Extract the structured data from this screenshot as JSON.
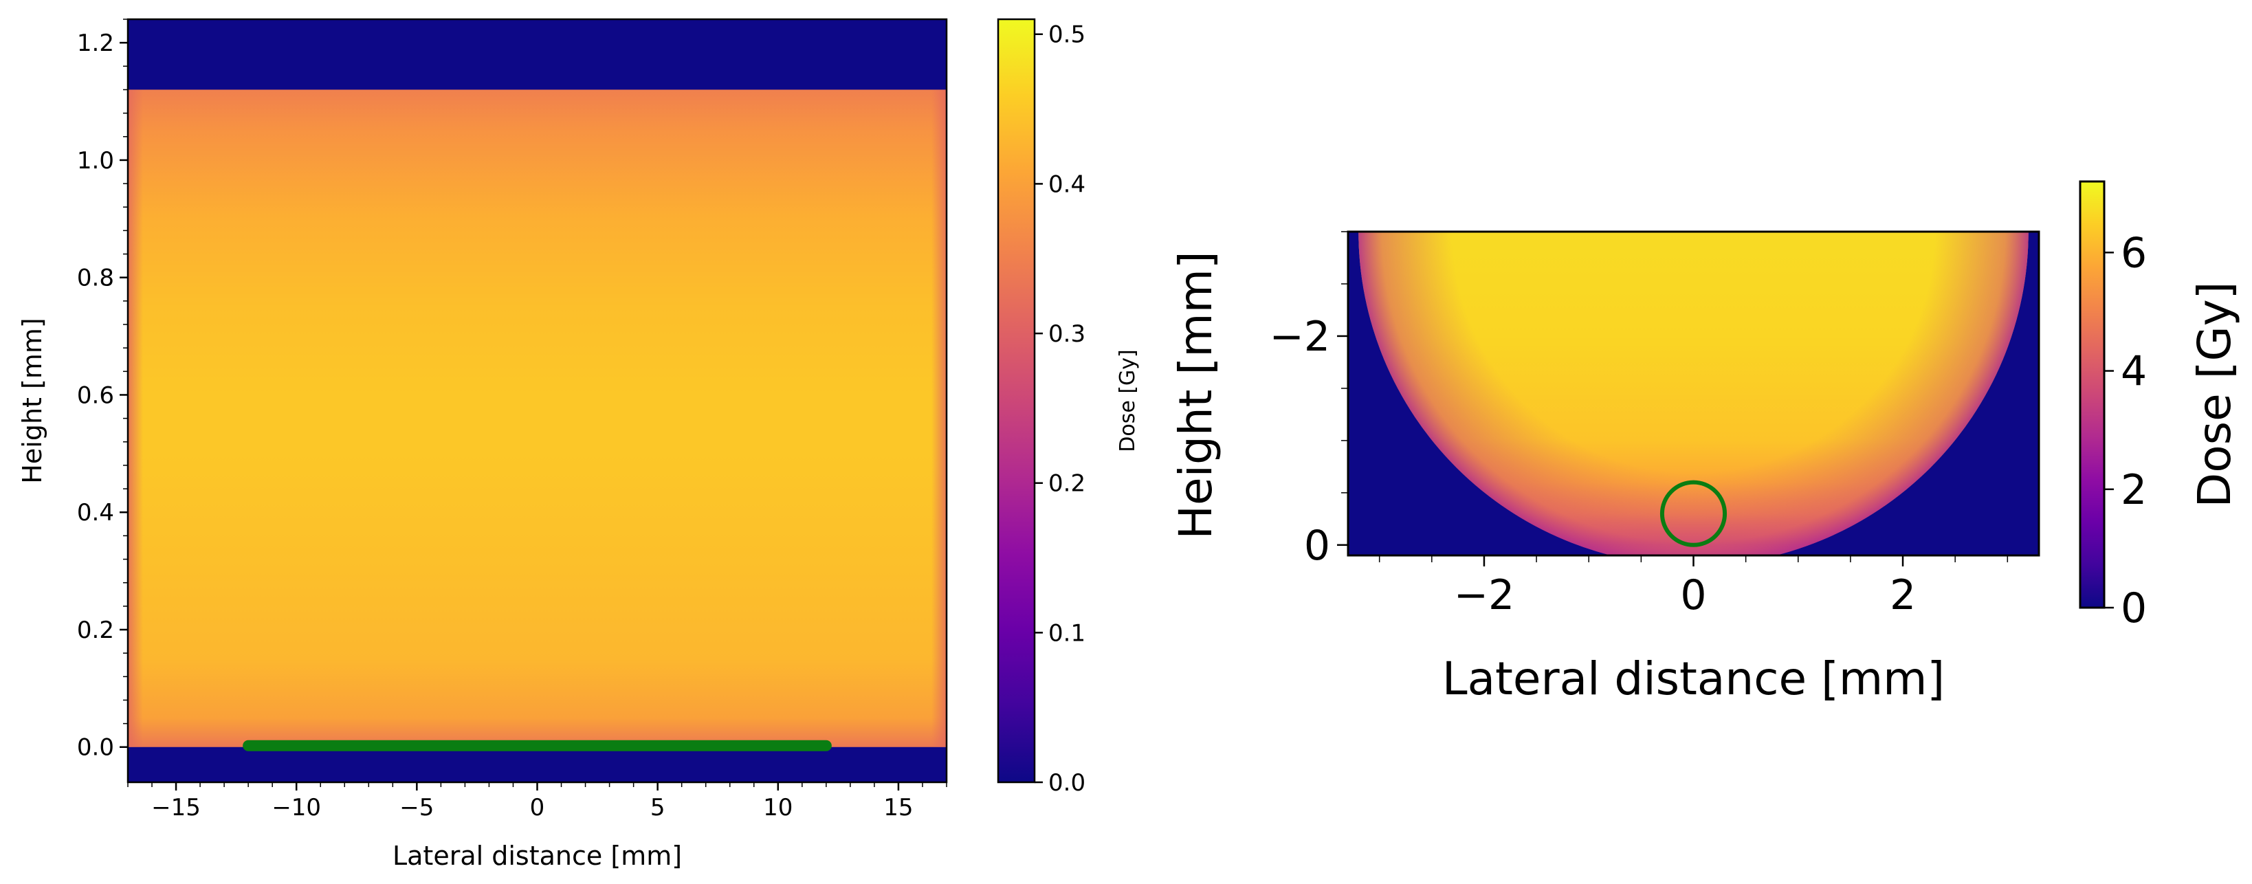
{
  "chart_data": [
    {
      "type": "heatmap",
      "xlabel": "Lateral distance [mm]",
      "ylabel": "Height [mm]",
      "xlim": [
        -17,
        17
      ],
      "ylim": [
        -0.06,
        1.24
      ],
      "xticks": [
        -15,
        -10,
        -5,
        0,
        5,
        10,
        15
      ],
      "xtick_labels": [
        "−15",
        "−10",
        "−5",
        "0",
        "5",
        "10",
        "15"
      ],
      "yticks": [
        0.0,
        0.2,
        0.4,
        0.6,
        0.8,
        1.0,
        1.2
      ],
      "ytick_labels": [
        "0.0",
        "0.2",
        "0.4",
        "0.6",
        "0.8",
        "1.0",
        "1.2"
      ],
      "colormap": "plasma",
      "background_color": "#0d0887",
      "dose_region": {
        "x": [
          -17,
          17
        ],
        "y": [
          0.0,
          1.12
        ]
      },
      "dose_profile": {
        "height": [
          0.0,
          0.05,
          0.15,
          0.3,
          0.5,
          0.6,
          0.75,
          0.9,
          1.05,
          1.12
        ],
        "dose_gy": [
          0.34,
          0.4,
          0.43,
          0.44,
          0.45,
          0.45,
          0.44,
          0.42,
          0.38,
          0.35
        ]
      },
      "annotation": {
        "shape": "line",
        "color": "#0a7d12",
        "x": [
          -12,
          12
        ],
        "y": 0.0
      },
      "colorbar": {
        "label": "Dose [Gy]",
        "range": [
          0.0,
          0.51
        ],
        "ticks": [
          0.0,
          0.1,
          0.2,
          0.3,
          0.4,
          0.5
        ],
        "tick_labels": [
          "0.0",
          "0.1",
          "0.2",
          "0.3",
          "0.4",
          "0.5"
        ]
      }
    },
    {
      "type": "heatmap",
      "xlabel": "Lateral distance [mm]",
      "ylabel": "Height [mm]",
      "xlim": [
        -3.3,
        3.3
      ],
      "ylim": [
        0.1,
        -3.0
      ],
      "y_inverted": true,
      "xticks": [
        -2,
        0,
        2
      ],
      "xtick_labels": [
        "−2",
        "0",
        "2"
      ],
      "yticks": [
        0,
        -2
      ],
      "ytick_labels": [
        "0",
        "−2"
      ],
      "colormap": "plasma",
      "background_color": "#0d0887",
      "dose_region": {
        "shape": "half-disk",
        "center": [
          0,
          -3.0
        ],
        "radius": 3.2
      },
      "dose_profile": {
        "height": [
          0,
          -0.1,
          -0.3,
          -0.6,
          -1.0,
          -2.0,
          -3.0
        ],
        "dose_gy": [
          3.6,
          4.2,
          5.1,
          5.8,
          6.3,
          6.6,
          6.7
        ]
      },
      "annotation": {
        "shape": "circle",
        "color": "#0a7d12",
        "center": [
          0,
          -0.3
        ],
        "radius": 0.3
      },
      "colorbar": {
        "label": "Dose [Gy]",
        "range": [
          0,
          7.2
        ],
        "ticks": [
          0,
          2,
          4,
          6
        ],
        "tick_labels": [
          "0",
          "2",
          "4",
          "6"
        ]
      }
    }
  ]
}
